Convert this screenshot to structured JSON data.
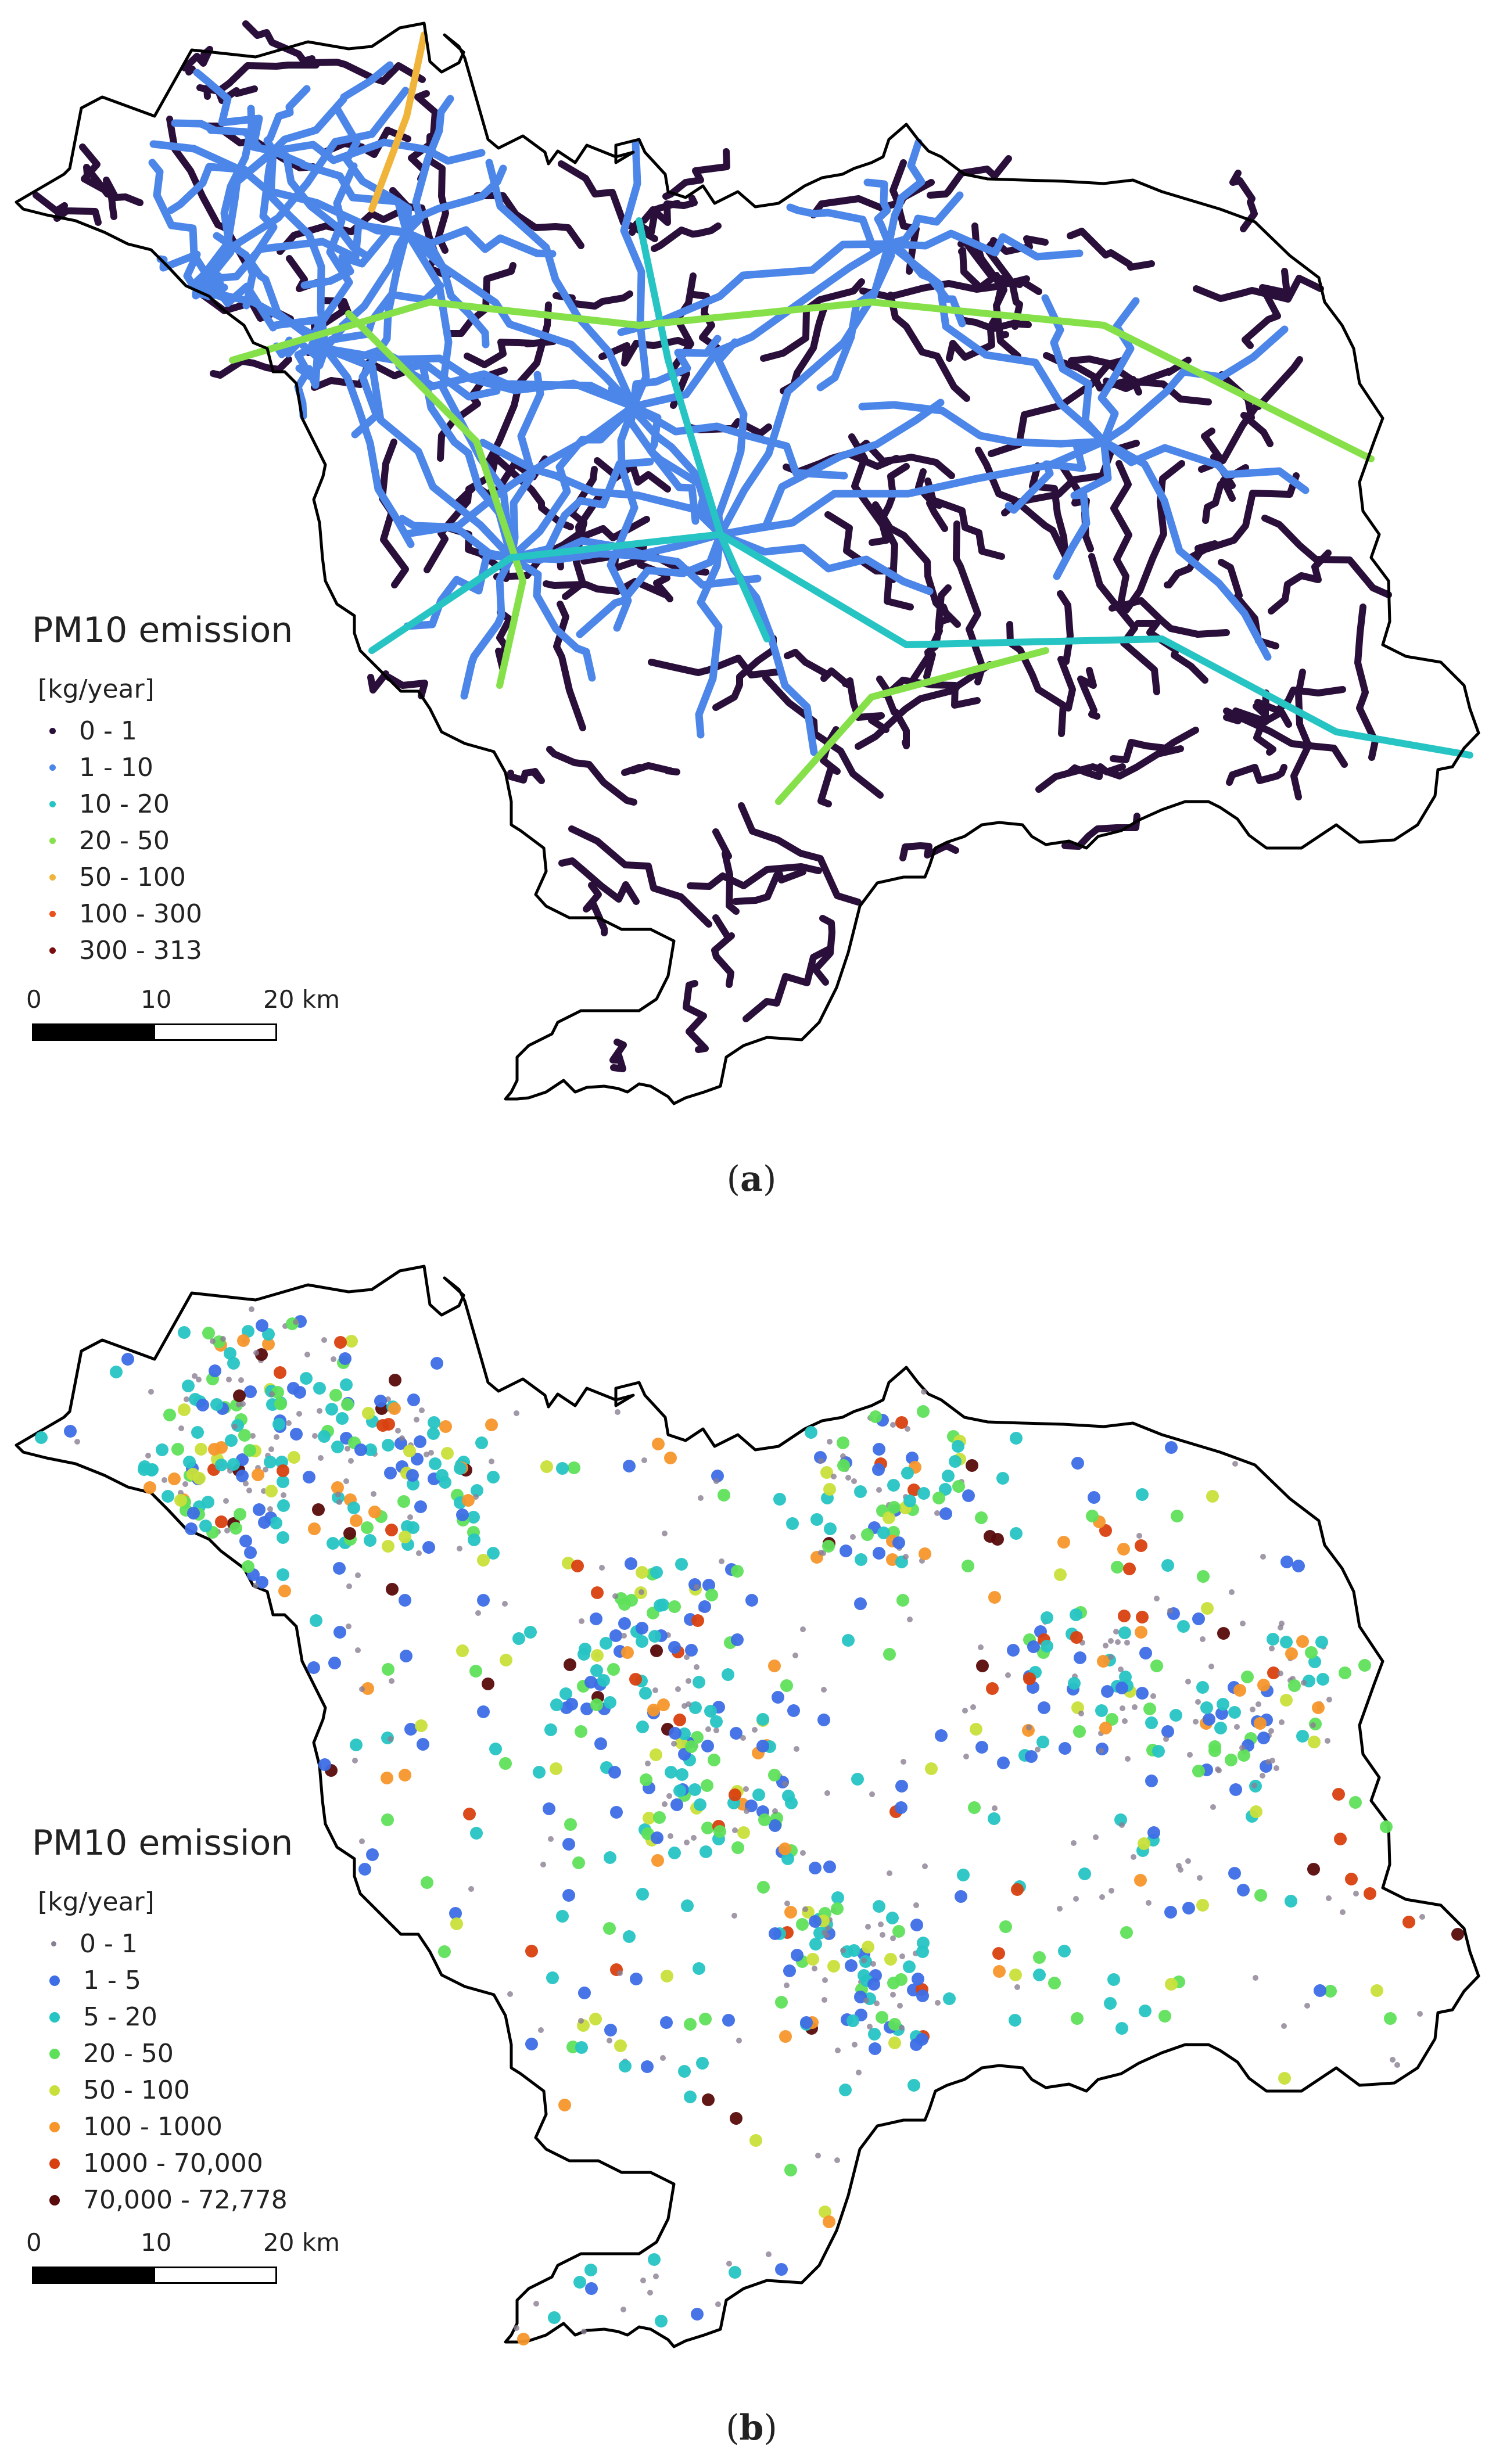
{
  "panel_a": {
    "legend": {
      "title": "PM10 emission",
      "unit": "[kg/year]",
      "classes": [
        {
          "label": "0 - 1",
          "color": "#2a0f3a"
        },
        {
          "label": "1 - 10",
          "color": "#4b86e8"
        },
        {
          "label": "10 - 20",
          "color": "#27c4c4"
        },
        {
          "label": "20 - 50",
          "color": "#86e04a"
        },
        {
          "label": "50 - 100",
          "color": "#f0b43a"
        },
        {
          "label": "100 - 300",
          "color": "#e9501a"
        },
        {
          "label": "300 - 313",
          "color": "#7a0d0d"
        }
      ]
    },
    "scalebar": {
      "labels": [
        "0",
        "10",
        "20 km"
      ]
    },
    "caption": {
      "open": "(",
      "letter": "a",
      "close": ")"
    }
  },
  "panel_b": {
    "legend": {
      "title": "PM10 emission",
      "unit": "[kg/year]",
      "classes": [
        {
          "label": "0 - 1",
          "color": "#8a7e92"
        },
        {
          "label": "1 - 5",
          "color": "#3d6ee6"
        },
        {
          "label": "5 - 20",
          "color": "#27c4c4"
        },
        {
          "label": "20 - 50",
          "color": "#5fe05a"
        },
        {
          "label": "50 - 100",
          "color": "#c9e03a"
        },
        {
          "label": "100 - 1000",
          "color": "#f7962b"
        },
        {
          "label": "1000 - 70,000",
          "color": "#d9400f"
        },
        {
          "label": "70,000 - 72,778",
          "color": "#5a0b0b"
        }
      ]
    },
    "scalebar": {
      "labels": [
        "0",
        "10",
        "20 km"
      ]
    },
    "caption": {
      "open": "(",
      "letter": "b",
      "close": ")"
    }
  },
  "colors": {
    "boundary": "#000000",
    "road_minor": "#2a0f3a",
    "road_major": "#4b86e8"
  }
}
